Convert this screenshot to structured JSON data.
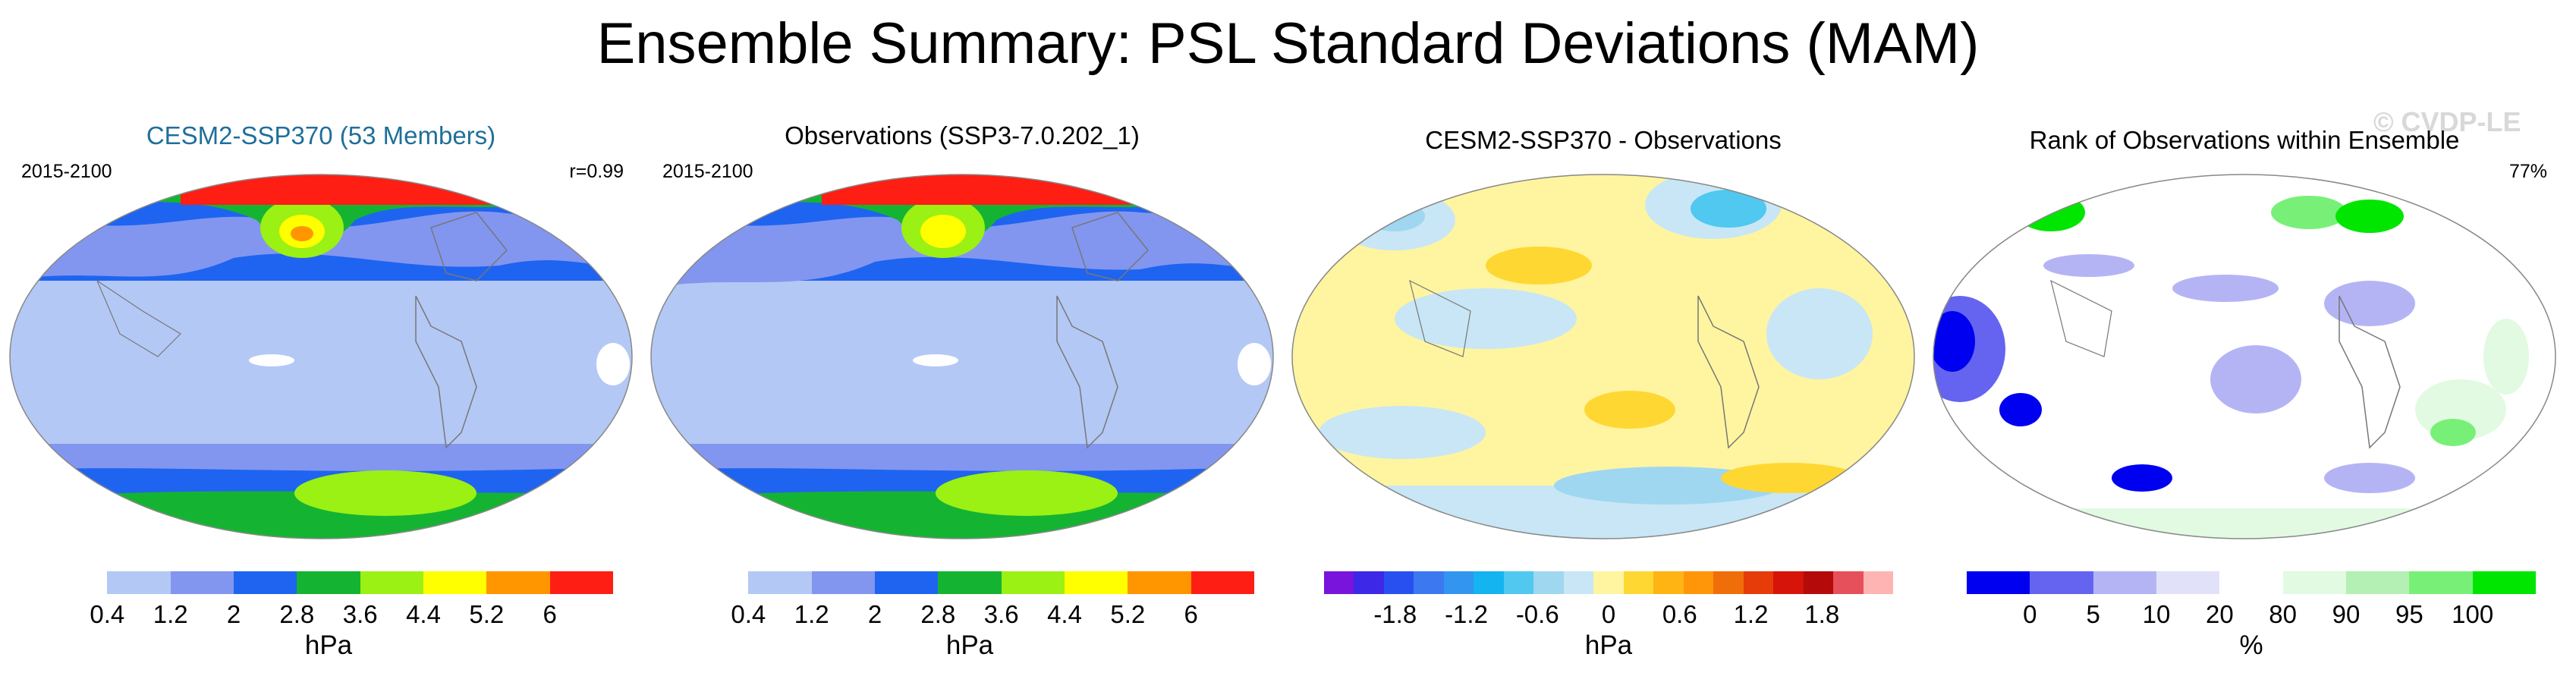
{
  "title": "Ensemble Summary: PSL Standard Deviations (MAM)",
  "watermark": "© CVDP-LE",
  "panels": [
    {
      "title": "CESM2-SSP370 (53 Members)",
      "left_label": "2015-2100",
      "right_label": "r=0.99"
    },
    {
      "title": "Observations (SSP3-7.0.202_1)",
      "left_label": "2015-2100",
      "right_label": ""
    },
    {
      "title": "CESM2-SSP370 - Observations",
      "left_label": "",
      "right_label": ""
    },
    {
      "title": "Rank of Observations within Ensemble",
      "left_label": "",
      "right_label": "77%"
    }
  ],
  "chart_data": [
    {
      "type": "heatmap",
      "title": "CESM2-SSP370 (53 Members)",
      "period": "2015-2100",
      "pattern_correlation": "r=0.99",
      "colorbar": {
        "unit": "hPa",
        "ticks": [
          "0.4",
          "1.2",
          "2",
          "2.8",
          "3.6",
          "4.4",
          "5.2",
          "6"
        ],
        "colors": [
          "#ffffff",
          "#b4c8f5",
          "#8296f0",
          "#1e64f0",
          "#14b432",
          "#9bf014",
          "#ffff00",
          "#ff9600",
          "#ff1e14"
        ]
      }
    },
    {
      "type": "heatmap",
      "title": "Observations (SSP3-7.0.202_1)",
      "period": "2015-2100",
      "colorbar": {
        "unit": "hPa",
        "ticks": [
          "0.4",
          "1.2",
          "2",
          "2.8",
          "3.6",
          "4.4",
          "5.2",
          "6"
        ],
        "colors": [
          "#ffffff",
          "#b4c8f5",
          "#8296f0",
          "#1e64f0",
          "#14b432",
          "#9bf014",
          "#ffff00",
          "#ff9600",
          "#ff1e14"
        ]
      }
    },
    {
      "type": "heatmap",
      "title": "CESM2-SSP370 - Observations",
      "colorbar": {
        "unit": "hPa",
        "ticks": [
          "-1.8",
          "-1.2",
          "-0.6",
          "0",
          "0.6",
          "1.2",
          "1.8"
        ],
        "colors": [
          "#7814dc",
          "#3c28e6",
          "#2850f0",
          "#3c78f0",
          "#3296f0",
          "#14b4f0",
          "#50c8f0",
          "#a0d7f0",
          "#c8e6f5",
          "#fff5a0",
          "#ffd732",
          "#ffb414",
          "#ff960a",
          "#f06e0a",
          "#e63c0a",
          "#d7140a",
          "#b40a0a",
          "#e6505a",
          "#ffb4b4"
        ]
      }
    },
    {
      "type": "heatmap",
      "title": "Rank of Observations within Ensemble",
      "percent_in_range": "77%",
      "colorbar": {
        "unit": "%",
        "ticks": [
          "0",
          "5",
          "10",
          "20",
          "80",
          "90",
          "95",
          "100"
        ],
        "colors": [
          "#0000f0",
          "#6464f0",
          "#b4b4f5",
          "#e1e1fa",
          "#ffffff",
          "#e1fae1",
          "#b4f0b4",
          "#78f078",
          "#00e600"
        ]
      }
    }
  ]
}
